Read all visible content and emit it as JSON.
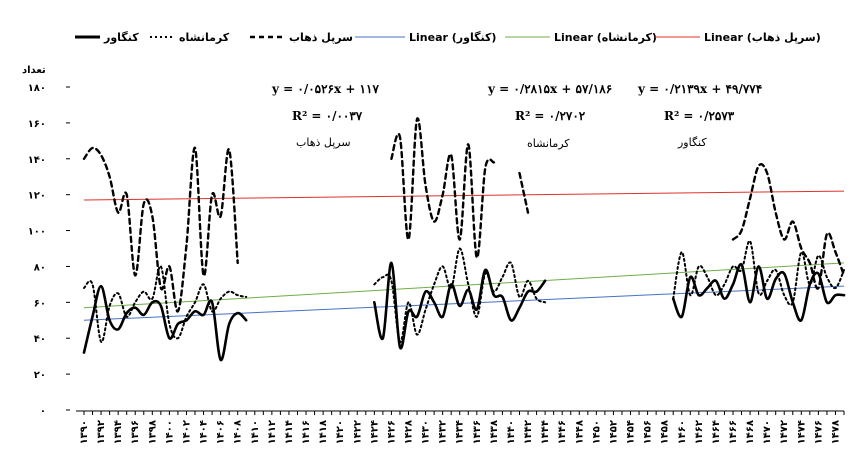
{
  "chart_data": {
    "type": "line",
    "ylabel": "تعداد",
    "ylim": [
      0,
      180
    ],
    "yticks": [
      "۰",
      "۲۰",
      "۴۰",
      "۶۰",
      "۸۰",
      "۱۰۰",
      "۱۲۰",
      "۱۴۰",
      "۱۶۰",
      "۱۸۰"
    ],
    "ytick_values": [
      0,
      20,
      40,
      60,
      80,
      100,
      120,
      140,
      160,
      180
    ],
    "x_labels": [
      "۱۳۹۰",
      "۱۳۹۲",
      "۱۳۹۴",
      "۱۳۹۶",
      "۱۳۹۸",
      "۱۴۰۰",
      "۱۴۰۲",
      "۱۴۰۴",
      "۱۴۰۶",
      "۱۴۰۸",
      "۱۴۱۰",
      "۱۴۱۲",
      "۱۴۱۴",
      "۱۴۱۶",
      "۱۴۱۸",
      "۱۴۲۰",
      "۱۴۲۲",
      "۱۴۲۴",
      "۱۴۲۶",
      "۱۴۲۸",
      "۱۴۳۰",
      "۱۴۳۲",
      "۱۴۳۴",
      "۱۴۳۶",
      "۱۴۳۸",
      "۱۴۴۰",
      "۱۴۴۲",
      "۱۴۴۴",
      "۱۴۴۶",
      "۱۴۴۸",
      "۱۴۵۰",
      "۱۴۵۲",
      "۱۴۵۴",
      "۱۴۵۶",
      "۱۴۵۸",
      "۱۴۶۰",
      "۱۴۶۲",
      "۱۴۶۴",
      "۱۴۶۶",
      "۱۴۶۸",
      "۱۴۷۰",
      "۱۴۷۲",
      "۱۴۷۴",
      "۱۴۷۶",
      "۱۴۷۸"
    ],
    "x_min": 1390,
    "x_max": 1479,
    "legend": [
      {
        "label": "کنگاور",
        "style": "solid-black"
      },
      {
        "label": "کرمانشاه",
        "style": "dotted-black"
      },
      {
        "label": "سرپل ذهاب",
        "style": "dashed-black"
      },
      {
        "label": "Linear (کنگاور)",
        "style": "blue"
      },
      {
        "label": "Linear (کرمانشاه)",
        "style": "green"
      },
      {
        "label": "Linear (سرپل ذهاب)",
        "style": "red"
      }
    ],
    "annotations": [
      {
        "eq": "y = ۰/۰۵۲۶x + ۱۱۷",
        "r2": "R² = ۰/۰۰۳۷",
        "name": "سرپل ذهاب"
      },
      {
        "eq": "y = ۰/۲۸۱۵x + ۵۷/۱۸۶",
        "r2": "R² = ۰/۲۷۰۲",
        "name": "کرمانشاه"
      },
      {
        "eq": "y = ۰/۲۱۳۹x + ۴۹/۷۷۴",
        "r2": "R² = ۰/۲۵۷۳",
        "name": "کنگاور"
      }
    ],
    "series": [
      {
        "name": "کنگاور",
        "style": "solid",
        "color": "#000000",
        "segments": [
          {
            "x": [
              1390,
              1391,
              1392,
              1393,
              1394,
              1395,
              1396,
              1397,
              1398,
              1399,
              1400,
              1401,
              1402,
              1403,
              1404,
              1405,
              1406,
              1407,
              1408,
              1409
            ],
            "y": [
              32,
              52,
              69,
              50,
              45,
              54,
              57,
              53,
              60,
              58,
              40,
              48,
              50,
              55,
              53,
              60,
              28,
              48,
              54,
              50
            ]
          },
          {
            "x": [
              1424,
              1425,
              1426,
              1427,
              1428,
              1429,
              1430,
              1431,
              1432,
              1433,
              1434,
              1435,
              1436,
              1437,
              1438,
              1439,
              1440,
              1441,
              1442,
              1443,
              1444
            ],
            "y": [
              60,
              40,
              82,
              35,
              55,
              52,
              66,
              60,
              52,
              70,
              58,
              67,
              56,
              78,
              64,
              63,
              50,
              57,
              66,
              66,
              72
            ]
          },
          {
            "x": [
              1459,
              1460,
              1461,
              1462,
              1463,
              1464,
              1465,
              1466,
              1467,
              1468,
              1469,
              1470,
              1471,
              1472,
              1473,
              1474,
              1475,
              1476,
              1477,
              1478,
              1479
            ],
            "y": [
              62,
              52,
              74,
              64,
              68,
              72,
              62,
              70,
              81,
              60,
              80,
              62,
              73,
              76,
              60,
              50,
              70,
              76,
              60,
              64,
              64
            ]
          }
        ]
      },
      {
        "name": "کرمانشاه",
        "style": "dotted",
        "color": "#000000",
        "segments": [
          {
            "x": [
              1390,
              1391,
              1392,
              1393,
              1394,
              1395,
              1396,
              1397,
              1398,
              1399,
              1400,
              1401,
              1402,
              1403,
              1404,
              1405,
              1406,
              1407,
              1408,
              1409
            ],
            "y": [
              68,
              70,
              38,
              58,
              65,
              52,
              60,
              66,
              62,
              80,
              48,
              40,
              52,
              60,
              70,
              55,
              62,
              66,
              64,
              63
            ]
          },
          {
            "x": [
              1424,
              1425,
              1426,
              1427,
              1428,
              1429,
              1430,
              1431,
              1432,
              1433,
              1434,
              1435,
              1436,
              1437,
              1438,
              1439,
              1440,
              1441,
              1442,
              1443,
              1444
            ],
            "y": [
              70,
              74,
              72,
              38,
              60,
              42,
              56,
              70,
              80,
              68,
              90,
              70,
              52,
              76,
              66,
              74,
              82,
              63,
              72,
              62,
              60
            ]
          },
          {
            "x": [
              1459,
              1460,
              1461,
              1462,
              1463,
              1464,
              1465,
              1466,
              1467,
              1468,
              1469,
              1470,
              1471,
              1472,
              1473,
              1474,
              1475,
              1476,
              1477,
              1478,
              1479
            ],
            "y": [
              62,
              88,
              64,
              80,
              74,
              64,
              70,
              80,
              78,
              94,
              65,
              72,
              78,
              64,
              60,
              88,
              70,
              86,
              74,
              68,
              78
            ]
          }
        ]
      },
      {
        "name": "سرپل ذهاب",
        "style": "dashed",
        "color": "#000000",
        "segments": [
          {
            "x": [
              1390,
              1391,
              1392,
              1393,
              1394,
              1395,
              1396,
              1397,
              1398,
              1399,
              1400,
              1401,
              1402,
              1403,
              1404,
              1405,
              1406,
              1407,
              1408
            ],
            "y": [
              140,
              146,
              142,
              130,
              110,
              120,
              75,
              115,
              108,
              68,
              80,
              55,
              92,
              146,
              75,
              120,
              108,
              145,
              82
            ]
          },
          {
            "x": [
              1426,
              1427,
              1428,
              1429,
              1430,
              1431,
              1432,
              1433,
              1434,
              1435,
              1436,
              1437,
              1438,
              1439,
              1440,
              1441,
              1442,
              1443
            ],
            "y": [
              140,
              152,
              95,
              162,
              125,
              105,
              120,
              142,
              95,
              148,
              85,
              135,
              138,
              null,
              null,
              132,
              110,
              null
            ]
          },
          {
            "x": [
              1466,
              1467,
              1468,
              1469,
              1470,
              1471,
              1472,
              1473,
              1474,
              1475,
              1476,
              1477,
              1478,
              1479
            ],
            "y": [
              95,
              100,
              118,
              136,
              132,
              110,
              95,
              105,
              90,
              82,
              68,
              98,
              88,
              75
            ]
          }
        ]
      },
      {
        "name": "Linear (کنگاور)",
        "style": "trend",
        "color": "#4472C4",
        "x": [
          1390,
          1479
        ],
        "y": [
          50,
          69
        ]
      },
      {
        "name": "Linear (کرمانشاه)",
        "style": "trend",
        "color": "#70AD47",
        "x": [
          1390,
          1479
        ],
        "y": [
          57,
          82
        ]
      },
      {
        "name": "Linear (سرپل ذهاب)",
        "style": "trend",
        "color": "#E0302A",
        "x": [
          1390,
          1479
        ],
        "y": [
          117,
          122
        ]
      }
    ]
  }
}
